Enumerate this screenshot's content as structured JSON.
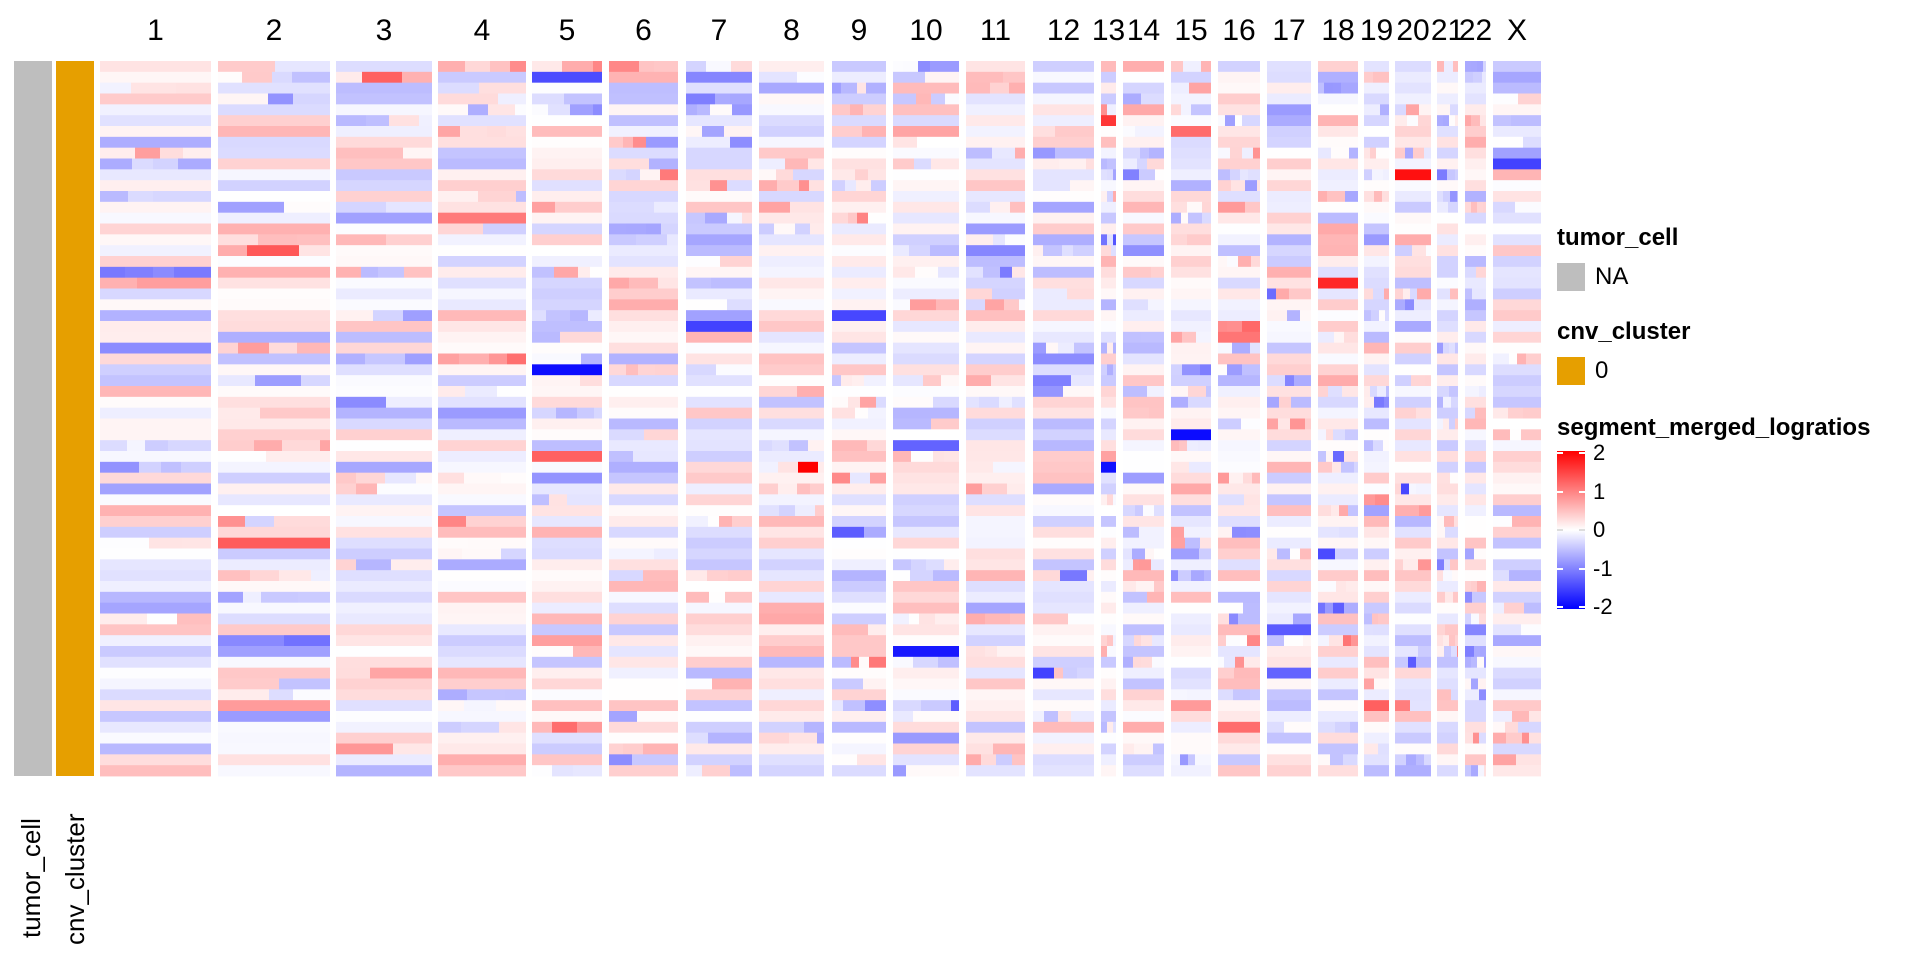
{
  "chart_data": {
    "type": "heatmap",
    "title": "",
    "chromosomes": [
      "1",
      "2",
      "3",
      "4",
      "5",
      "6",
      "7",
      "8",
      "9",
      "10",
      "11",
      "12",
      "13",
      "14",
      "15",
      "16",
      "17",
      "18",
      "19",
      "20",
      "21",
      "22",
      "X"
    ],
    "n_cells": 66,
    "value_range": [
      -2,
      2
    ],
    "colormap": {
      "low": "#0000FF",
      "mid": "#FFFFFF",
      "high": "#FF0000"
    },
    "values_note": "Per-cell segment_merged_logratios values per chromosome segment; individual cell values are not legible in the screenshot and are rendered as an approximate pattern.",
    "row_annotations": [
      {
        "name": "tumor_cell",
        "value": "NA",
        "color": "#BEBEBE"
      },
      {
        "name": "cnv_cluster",
        "value": "0",
        "color": "#E69F00"
      }
    ]
  },
  "legends": {
    "tumor_cell": {
      "title": "tumor_cell",
      "entries": [
        {
          "label": "NA",
          "color": "#BEBEBE"
        }
      ]
    },
    "cnv_cluster": {
      "title": "cnv_cluster",
      "entries": [
        {
          "label": "0",
          "color": "#E69F00"
        }
      ]
    },
    "logratio": {
      "title": "segment_merged_logratios",
      "ticks": [
        "2",
        "1",
        "0",
        "-1",
        "-2"
      ]
    }
  },
  "annotation_labels": {
    "tumor_cell": "tumor_cell",
    "cnv_cluster": "cnv_cluster"
  }
}
